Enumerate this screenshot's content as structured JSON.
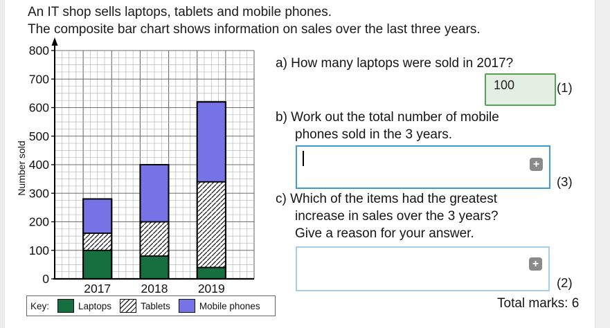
{
  "page": {
    "title_line1": "An IT shop sells laptops, tablets and mobile phones.",
    "title_line2": "The composite bar chart shows information on sales over the last three years."
  },
  "chart_data": {
    "type": "bar",
    "stacked": true,
    "title": "",
    "xlabel": "",
    "ylabel": "Number sold",
    "ylim": [
      0,
      800
    ],
    "ytick_step": 100,
    "grid": "fine graph paper, minor every 25, major every 100",
    "categories": [
      "2017",
      "2018",
      "2019"
    ],
    "series": [
      {
        "name": "Laptops",
        "style": "solid",
        "color": "#156f3e",
        "values": [
          100,
          80,
          40
        ]
      },
      {
        "name": "Tablets",
        "style": "hatch",
        "color": "#ffffff",
        "values": [
          60,
          120,
          300
        ]
      },
      {
        "name": "Mobile phones",
        "style": "solid",
        "color": "#7673e6",
        "values": [
          120,
          200,
          280
        ]
      }
    ],
    "totals_per_year": [
      280,
      400,
      620
    ],
    "key_label": "Key:",
    "legend_position": "bottom"
  },
  "questions": {
    "a": {
      "label": "a) How many laptops were sold in 2017?",
      "answer": "100",
      "marks": "(1)"
    },
    "b": {
      "label_line1": "b) Work out the total number of mobile",
      "label_line2": "phones sold in the 3 years.",
      "value": "",
      "marks": "(3)"
    },
    "c": {
      "label_line1": "c) Which of the items had the greatest",
      "label_line2": "increase in sales over the 3 years?",
      "label_line3": "Give a reason for your answer.",
      "value": "",
      "marks": "(2)"
    },
    "total_marks": "Total marks: 6"
  },
  "icons": {
    "expand_plus": "+"
  },
  "colors": {
    "laptops_green": "#156f3e",
    "mobile_blue": "#7673e6",
    "answer_box_green_border": "#58a058",
    "answer_box_green_fill": "#e3efe2",
    "input_border_blue": "#3f9bd5",
    "input_border_blue_light": "#a6cde9",
    "plus_button_gray": "#8a8a8a"
  }
}
